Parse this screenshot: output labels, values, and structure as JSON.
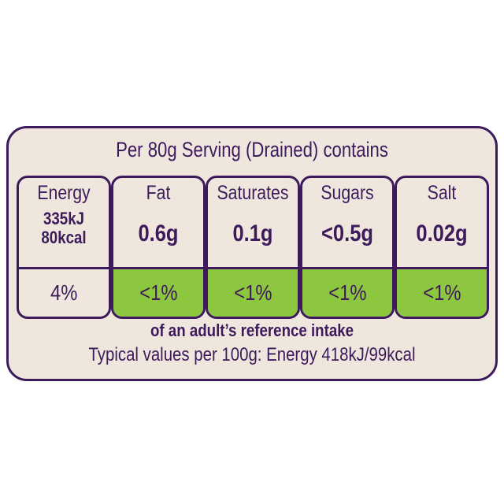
{
  "title": "Per 80g Serving (Drained) contains",
  "nutrients": [
    {
      "name": "Energy",
      "value_kj": "335kJ",
      "value_kcal": "80kcal",
      "percent": "4%",
      "level": "none"
    },
    {
      "name": "Fat",
      "value": "0.6g",
      "percent": "<1%",
      "level": "low"
    },
    {
      "name": "Saturates",
      "value": "0.1g",
      "percent": "<1%",
      "level": "low"
    },
    {
      "name": "Sugars",
      "value": "<0.5g",
      "percent": "<1%",
      "level": "low"
    },
    {
      "name": "Salt",
      "value": "0.02g",
      "percent": "<1%",
      "level": "low"
    }
  ],
  "reference_note": "of an adult’s reference intake",
  "typical_values": "Typical values per 100g: Energy 418kJ/99kcal",
  "colors": {
    "border": "#3d1a5b",
    "background": "#efe7dd",
    "low": "#8dc63f"
  }
}
